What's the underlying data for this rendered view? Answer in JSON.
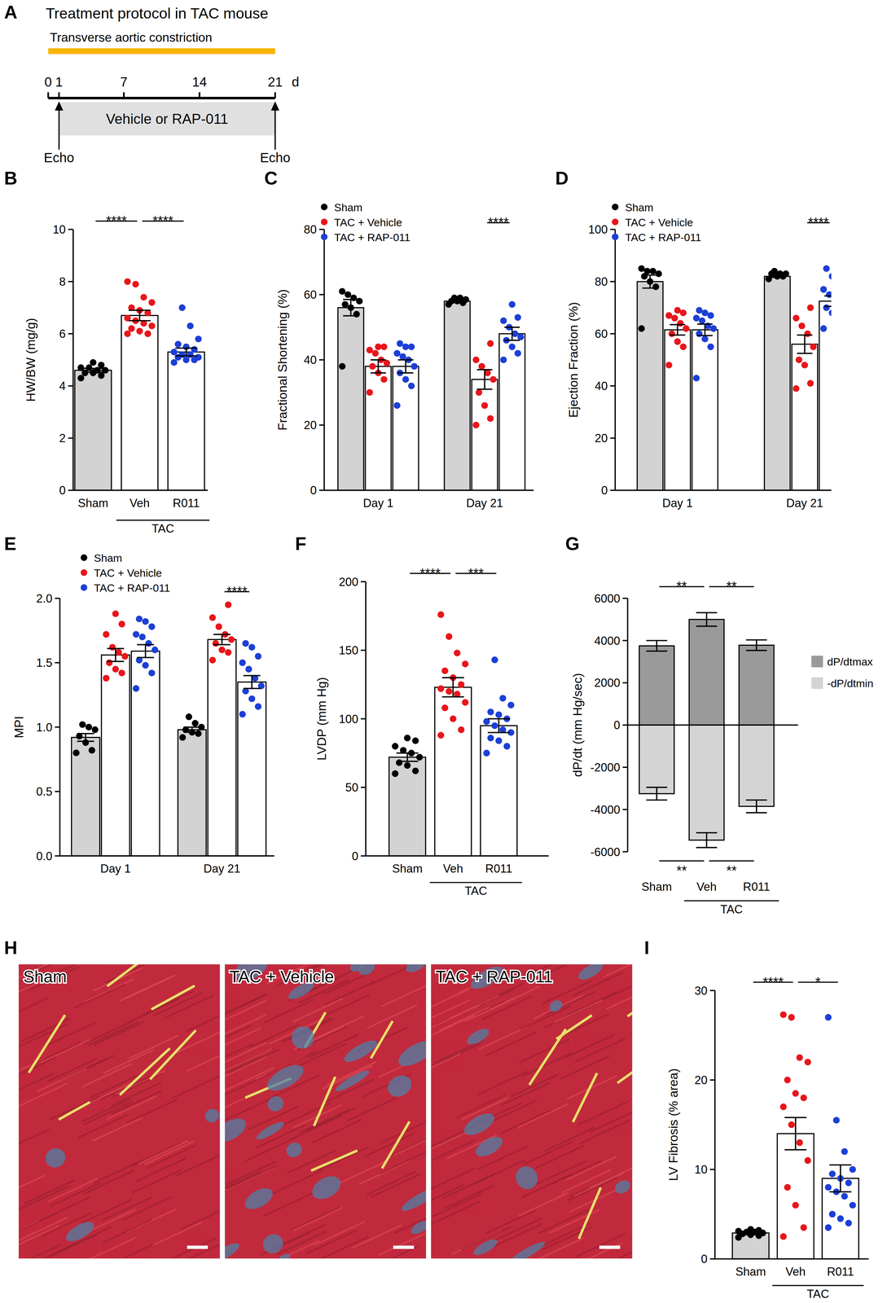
{
  "protocol": {
    "panel": "A",
    "title": "Treatment protocol in TAC mouse",
    "bar_label": "Transverse aortic constriction",
    "days": [
      0,
      1,
      7,
      14,
      21
    ],
    "unit": "d",
    "treatment": {
      "label": "Vehicle or RAP-011",
      "start": 1,
      "end": 21
    },
    "echo": {
      "label": "Echo",
      "days": [
        1,
        21
      ]
    }
  },
  "histology": {
    "panel": "H",
    "images": [
      "Sham",
      "TAC + Vehicle",
      "TAC + RAP-011"
    ]
  },
  "chart_data": [
    {
      "panel": "B",
      "type": "bar",
      "y_label": "HW/BW (mg/g)",
      "categories": [
        "Sham",
        "Veh",
        "R011"
      ],
      "values": [
        4.6,
        6.7,
        5.3
      ],
      "errors": [
        0.07,
        0.2,
        0.15
      ],
      "colors": [
        "#000000",
        "#e8161b",
        "#1c3fd6"
      ],
      "points": [
        [
          4.3,
          4.4,
          4.5,
          4.5,
          4.6,
          4.6,
          4.7,
          4.7,
          4.8,
          4.9
        ],
        [
          6.0,
          6.0,
          6.1,
          6.2,
          6.3,
          6.4,
          6.5,
          6.6,
          6.8,
          6.9,
          7.0,
          7.2,
          7.4,
          7.9,
          8.0
        ],
        [
          4.9,
          5.0,
          5.0,
          5.1,
          5.1,
          5.2,
          5.2,
          5.3,
          5.4,
          5.5,
          5.6,
          5.8,
          6.3,
          7.0
        ]
      ],
      "ylim": [
        0,
        10
      ],
      "yticks": [
        0,
        2,
        4,
        6,
        8,
        10
      ],
      "annotations": [
        {
          "text": "****",
          "from": 0,
          "to": 1
        },
        {
          "text": "****",
          "from": 1,
          "to": 2
        },
        {
          "text": "TAC",
          "from": 1,
          "to": 2,
          "side": "axis"
        }
      ]
    },
    {
      "panel": "C",
      "type": "bar",
      "y_label": "Fractional Shortening (%)",
      "categories": [
        "Day 1",
        "Day 21"
      ],
      "legend": "upper left",
      "ylim": [
        0,
        80
      ],
      "yticks": [
        0,
        20,
        40,
        60,
        80
      ],
      "series": [
        {
          "name": "Sham",
          "color": "#000000",
          "values": [
            56,
            58
          ],
          "errors": [
            2.5,
            0.4
          ],
          "points": [
            [
              38,
              54,
              56,
              57,
              58,
              59,
              60,
              61
            ],
            [
              57,
              57.5,
              58,
              58,
              58.5,
              59,
              59
            ]
          ]
        },
        {
          "name": "TAC + Vehicle",
          "color": "#e8161b",
          "values": [
            38,
            34
          ],
          "errors": [
            2,
            3
          ],
          "points": [
            [
              30,
              34,
              36,
              38,
              39,
              40,
              42,
              43,
              44,
              44
            ],
            [
              20,
              22,
              26,
              30,
              34,
              36,
              38,
              40,
              45
            ]
          ]
        },
        {
          "name": "TAC + RAP-011",
          "color": "#1c3fd6",
          "values": [
            38,
            48
          ],
          "errors": [
            2,
            2
          ],
          "points": [
            [
              26,
              32,
              34,
              36,
              38,
              40,
              41,
              42,
              44,
              44,
              45
            ],
            [
              40,
              42,
              44,
              46,
              47,
              48,
              50,
              52,
              53,
              57
            ]
          ]
        }
      ],
      "annotations": [
        {
          "text": "****",
          "category": 1,
          "from": 1,
          "to": 2
        }
      ]
    },
    {
      "panel": "D",
      "type": "bar",
      "y_label": "Ejection Fraction (%)",
      "categories": [
        "Day 1",
        "Day 21"
      ],
      "legend": "upper left",
      "ylim": [
        0,
        100
      ],
      "yticks": [
        0,
        20,
        40,
        60,
        80,
        100
      ],
      "series": [
        {
          "name": "Sham",
          "color": "#000000",
          "values": [
            80,
            82
          ],
          "errors": [
            2.5,
            0.4
          ],
          "points": [
            [
              62,
              78,
              80,
              82,
              83,
              84,
              84,
              85
            ],
            [
              81,
              82,
              82,
              83,
              83,
              83,
              84
            ]
          ]
        },
        {
          "name": "TAC + Vehicle",
          "color": "#e8161b",
          "values": [
            61.5,
            56
          ],
          "errors": [
            2,
            3.5
          ],
          "points": [
            [
              48,
              55,
              57,
              60,
              62,
              64,
              66,
              67,
              68,
              69
            ],
            [
              39,
              41,
              48,
              50,
              55,
              60,
              63,
              66,
              70
            ]
          ]
        },
        {
          "name": "TAC + RAP-011",
          "color": "#1c3fd6",
          "values": [
            61.5,
            72.5
          ],
          "errors": [
            2.2,
            2
          ],
          "points": [
            [
              43,
              55,
              58,
              60,
              62,
              63,
              65,
              66,
              67,
              68,
              69
            ],
            [
              62,
              66,
              68,
              70,
              72,
              73,
              75,
              77,
              79,
              82,
              85
            ]
          ]
        }
      ],
      "annotations": [
        {
          "text": "****",
          "category": 1,
          "from": 1,
          "to": 2
        }
      ]
    },
    {
      "panel": "E",
      "type": "bar",
      "y_label": "MPI",
      "categories": [
        "Day 1",
        "Day 21"
      ],
      "legend": "upper left",
      "ylim": [
        0,
        2
      ],
      "yticks": [
        {
          "value": 0,
          "label": "0.0"
        },
        {
          "value": 0.5,
          "label": "0.5"
        },
        {
          "value": 1,
          "label": "1.0"
        },
        {
          "value": 1.5,
          "label": "1.5"
        },
        {
          "value": 2,
          "label": "2.0"
        }
      ],
      "series": [
        {
          "name": "Sham",
          "color": "#000000",
          "values": [
            0.92,
            0.98
          ],
          "errors": [
            0.03,
            0.02
          ],
          "points": [
            [
              0.8,
              0.82,
              0.88,
              0.93,
              0.98,
              1.0,
              1.02
            ],
            [
              0.92,
              0.95,
              0.96,
              0.98,
              1.0,
              1.03,
              1.08
            ]
          ]
        },
        {
          "name": "TAC + Vehicle",
          "color": "#e8161b",
          "values": [
            1.56,
            1.68
          ],
          "errors": [
            0.05,
            0.04
          ],
          "points": [
            [
              1.38,
              1.42,
              1.45,
              1.5,
              1.55,
              1.58,
              1.62,
              1.72,
              1.8,
              1.88
            ],
            [
              1.52,
              1.58,
              1.6,
              1.65,
              1.68,
              1.72,
              1.78,
              1.85,
              1.95
            ]
          ]
        },
        {
          "name": "TAC + RAP-011",
          "color": "#1c3fd6",
          "values": [
            1.59,
            1.35
          ],
          "errors": [
            0.05,
            0.05
          ],
          "points": [
            [
              1.3,
              1.42,
              1.48,
              1.52,
              1.6,
              1.65,
              1.7,
              1.72,
              1.78,
              1.82,
              1.84
            ],
            [
              1.1,
              1.16,
              1.22,
              1.28,
              1.32,
              1.38,
              1.45,
              1.5,
              1.55,
              1.62,
              1.65
            ]
          ]
        }
      ],
      "annotations": [
        {
          "text": "****",
          "category": 1,
          "from": 1,
          "to": 2
        }
      ]
    },
    {
      "panel": "F",
      "type": "bar",
      "y_label": "LVDP (mm Hg)",
      "categories": [
        "Sham",
        "Veh",
        "R011"
      ],
      "values": [
        72,
        123,
        95
      ],
      "errors": [
        3,
        7,
        5
      ],
      "colors": [
        "#000000",
        "#e8161b",
        "#1c3fd6"
      ],
      "points": [
        [
          60,
          62,
          66,
          68,
          72,
          75,
          77,
          80,
          84,
          86
        ],
        [
          88,
          92,
          100,
          108,
          112,
          118,
          120,
          122,
          125,
          130,
          135,
          140,
          148,
          160,
          176
        ],
        [
          75,
          80,
          84,
          86,
          90,
          92,
          95,
          98,
          100,
          103,
          105,
          110,
          115,
          143
        ]
      ],
      "ylim": [
        0,
        200
      ],
      "yticks": [
        0,
        50,
        100,
        150,
        200
      ],
      "annotations": [
        {
          "text": "****",
          "from": 0,
          "to": 1
        },
        {
          "text": "***",
          "from": 1,
          "to": 2
        },
        {
          "text": "TAC",
          "from": 1,
          "to": 2,
          "side": "axis"
        }
      ]
    },
    {
      "panel": "G",
      "type": "bar",
      "y_label": "dP/dt (mm Hg/sec)",
      "categories": [
        "Sham",
        "Veh",
        "R011"
      ],
      "legend": "right",
      "ylim": [
        -6000,
        6000
      ],
      "yticks": [
        -6000,
        -4000,
        -2000,
        0,
        2000,
        4000,
        6000
      ],
      "series": [
        {
          "name": "dP/dtmax",
          "color": "#9a9a9a",
          "values": [
            3750,
            5000,
            3780
          ],
          "errors": [
            250,
            320,
            250
          ]
        },
        {
          "name": "-dP/dtmin",
          "color": "#d4d4d4",
          "values": [
            -3250,
            -5450,
            -3850
          ],
          "errors": [
            300,
            350,
            300
          ]
        }
      ],
      "annotations": [
        {
          "text": "**",
          "from": 0,
          "to": 1
        },
        {
          "text": "**",
          "from": 1,
          "to": 2
        },
        {
          "text": "**",
          "from": 0,
          "to": 1,
          "side": "bottom"
        },
        {
          "text": "**",
          "from": 1,
          "to": 2,
          "side": "bottom"
        },
        {
          "text": "TAC",
          "from": 1,
          "to": 2,
          "side": "axis"
        }
      ]
    },
    {
      "panel": "I",
      "type": "bar",
      "y_label": "LV Fibrosis (% area)",
      "categories": [
        "Sham",
        "Veh",
        "R011"
      ],
      "values": [
        2.9,
        14,
        9
      ],
      "errors": [
        0.15,
        1.8,
        1.5
      ],
      "colors": [
        "#000000",
        "#e8161b",
        "#1c3fd6"
      ],
      "points": [
        [
          2.4,
          2.6,
          2.7,
          2.8,
          2.9,
          3.0,
          3.0,
          3.1,
          3.2,
          3.3
        ],
        [
          2.5,
          3.5,
          6,
          8,
          11,
          13,
          15,
          17,
          18,
          18.5,
          20,
          22,
          22.5,
          27,
          27.3
        ],
        [
          3.5,
          4,
          4.5,
          5,
          6,
          7,
          7.5,
          8,
          8.5,
          9,
          9.5,
          10,
          12,
          15.5,
          27
        ]
      ],
      "ylim": [
        0,
        30
      ],
      "yticks": [
        0,
        10,
        20,
        30
      ],
      "annotations": [
        {
          "text": "****",
          "from": 0,
          "to": 1
        },
        {
          "text": "*",
          "from": 1,
          "to": 2
        },
        {
          "text": "TAC",
          "from": 1,
          "to": 2,
          "side": "axis"
        }
      ]
    }
  ]
}
